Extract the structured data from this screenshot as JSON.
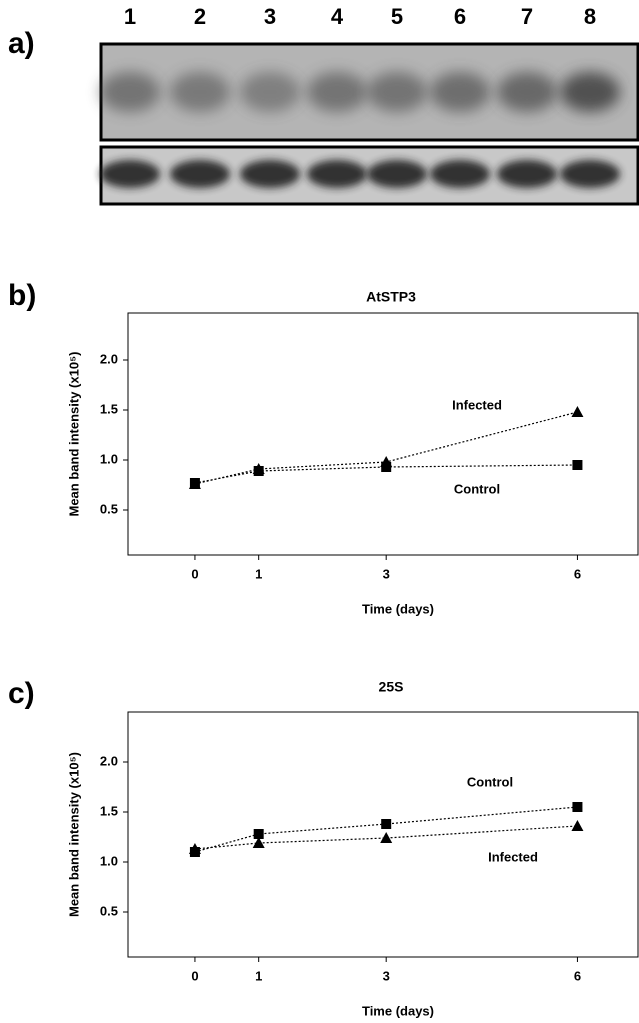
{
  "panel_labels": [
    "a)",
    "b)",
    "c)"
  ],
  "blot": {
    "lanes": [
      "1",
      "2",
      "3",
      "4",
      "5",
      "6",
      "7",
      "8"
    ]
  },
  "chart_data": [
    {
      "type": "line",
      "title": "AtSTP3",
      "xlabel": "Time (days)",
      "ylabel": "Mean band intensity (x10⁵)",
      "x": [
        0,
        1,
        3,
        6
      ],
      "xlim": [
        -1.05,
        6.95
      ],
      "xticks": [
        0,
        1,
        3,
        6
      ],
      "ylim": [
        0,
        2.5
      ],
      "yticks": [
        {
          "value": 0.5,
          "label": "0.5"
        },
        {
          "value": 1,
          "label": "1.0"
        },
        {
          "value": 1.5,
          "label": "1.5"
        },
        {
          "value": 2,
          "label": "2.0"
        }
      ],
      "series": [
        {
          "name": "Infected",
          "color": "#000000",
          "marker": "triangle",
          "values": [
            0.76,
            0.91,
            0.98,
            1.48
          ]
        },
        {
          "name": "Control",
          "color": "#000000",
          "marker": "square",
          "values": [
            0.77,
            0.89,
            0.93,
            0.95
          ]
        }
      ]
    },
    {
      "type": "line",
      "title": "25S",
      "xlabel": "Time (days)",
      "ylabel": "Mean band intensity (x10⁵)",
      "x": [
        0,
        1,
        3,
        6
      ],
      "xlim": [
        -1.05,
        6.95
      ],
      "xticks": [
        0,
        1,
        3,
        6
      ],
      "ylim": [
        0,
        2.5
      ],
      "yticks": [
        {
          "value": 0.5,
          "label": "0.5"
        },
        {
          "value": 1,
          "label": "1.0"
        },
        {
          "value": 1.5,
          "label": "1.5"
        },
        {
          "value": 2,
          "label": "2.0"
        }
      ],
      "series": [
        {
          "name": "Control",
          "color": "#000000",
          "marker": "square",
          "values": [
            1.1,
            1.28,
            1.38,
            1.55
          ]
        },
        {
          "name": "Infected",
          "color": "#000000",
          "marker": "triangle",
          "values": [
            1.13,
            1.19,
            1.24,
            1.36
          ]
        }
      ]
    }
  ]
}
